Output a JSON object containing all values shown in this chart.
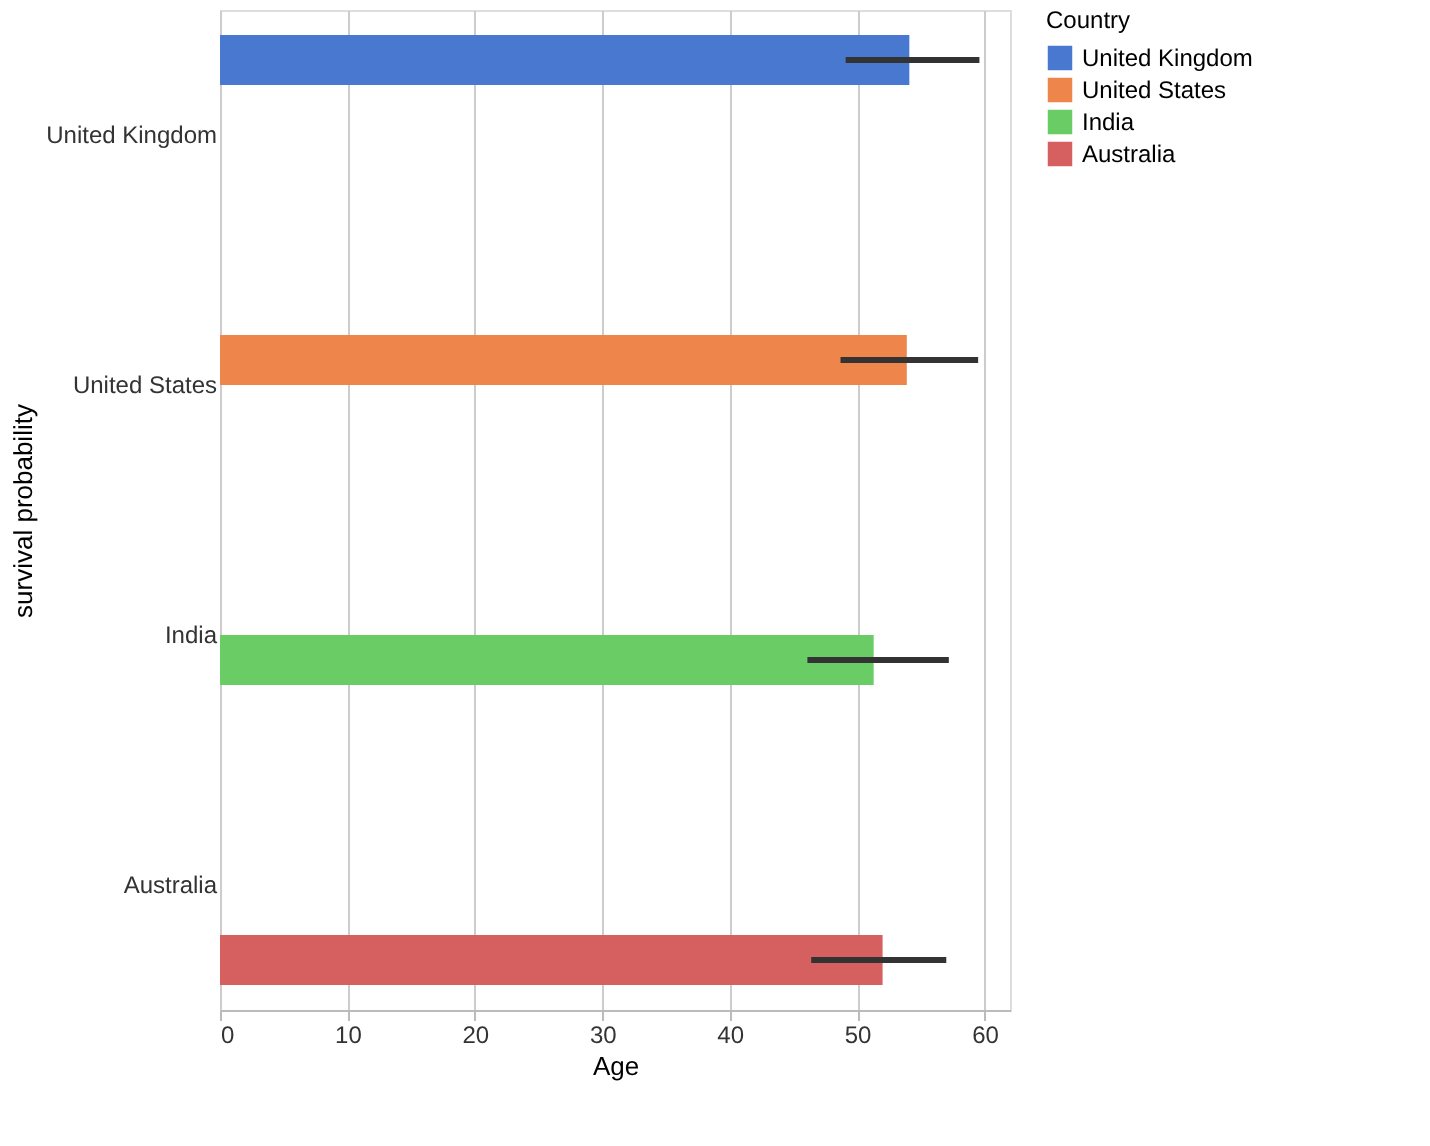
{
  "chart_data": {
    "type": "bar",
    "orientation": "horizontal",
    "xlabel": "Age",
    "ylabel": "survival probability",
    "legend_title": "Country",
    "legend": "right",
    "categories": [
      "United Kingdom",
      "United States",
      "India",
      "Australia"
    ],
    "series": [
      {
        "name": "United Kingdom",
        "color": "#4878d0",
        "values": [
          54.1,
          null,
          null,
          null
        ],
        "errors": [
          [
            49.1,
            59.6
          ],
          null,
          null,
          null
        ]
      },
      {
        "name": "United States",
        "color": "#ee854a",
        "values": [
          null,
          53.9,
          null,
          null
        ],
        "errors": [
          null,
          [
            48.7,
            59.5
          ],
          null,
          null
        ]
      },
      {
        "name": "India",
        "color": "#6acc64",
        "values": [
          null,
          null,
          51.3,
          null
        ],
        "errors": [
          null,
          null,
          [
            46.1,
            57.2
          ],
          null
        ]
      },
      {
        "name": "Australia",
        "color": "#d65f5f",
        "values": [
          null,
          null,
          null,
          52.0
        ],
        "errors": [
          null,
          null,
          null,
          [
            46.4,
            57.0
          ]
        ]
      }
    ],
    "xlim": [
      0,
      62
    ],
    "xticks": [
      0,
      10,
      20,
      30,
      40,
      50,
      60
    ],
    "grid": "x"
  }
}
